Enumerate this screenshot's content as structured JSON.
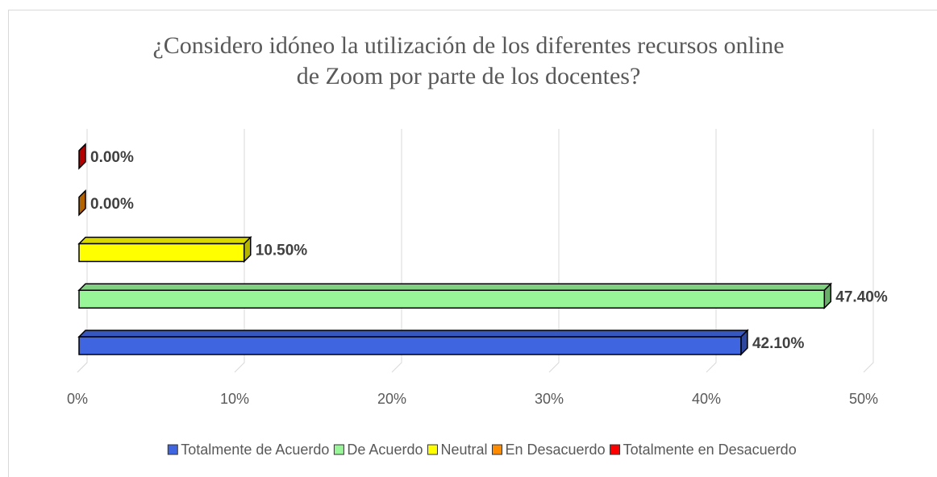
{
  "chart_data": {
    "type": "bar3d_horizontal",
    "title": "¿Considero idóneo la utilización de los diferentes recursos online de Zoom por parte de los docentes?",
    "categories": [
      "Totalmente de Acuerdo",
      "De Acuerdo",
      "Neutral",
      "En Desacuerdo",
      "Totalmente en Desacuerdo"
    ],
    "values": [
      42.1,
      47.4,
      10.5,
      0,
      0
    ],
    "value_labels": [
      "42.10%",
      "47.40%",
      "10.50%",
      "0.00%",
      "0.00%"
    ],
    "colors": [
      "#3f66e0",
      "#98f598",
      "#ffff00",
      "#ff8c00",
      "#ff0000"
    ],
    "xlim": [
      0,
      50
    ],
    "xticks": [
      {
        "value": 0,
        "label": "0%"
      },
      {
        "value": 10,
        "label": "10%"
      },
      {
        "value": 20,
        "label": "20%"
      },
      {
        "value": 30,
        "label": "30%"
      },
      {
        "value": 40,
        "label": "40%"
      },
      {
        "value": 50,
        "label": "50%"
      }
    ],
    "grid": true,
    "legend": "bottom"
  }
}
